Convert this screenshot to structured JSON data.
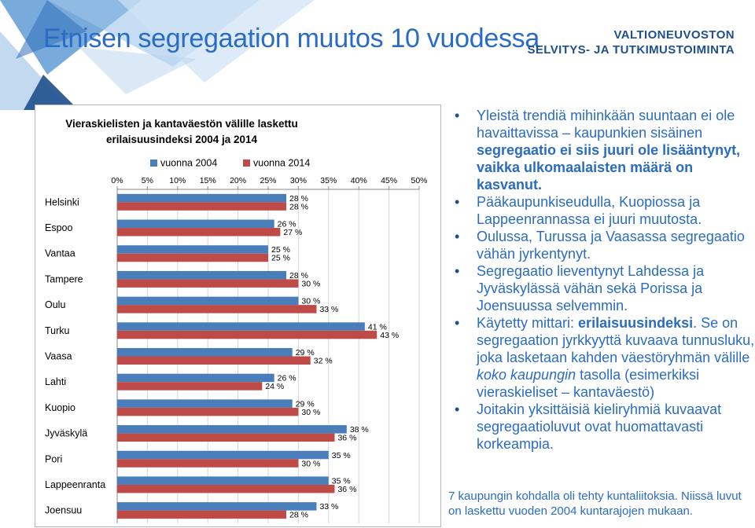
{
  "header": {
    "title": "Etnisen segregaation muutos 10 vuodessa",
    "org_line1": "VALTIONEUVOSTON",
    "org_line2": "SELVITYS- JA TUTKIMUSTOIMINTA"
  },
  "chart_data": {
    "type": "bar",
    "orientation": "horizontal",
    "title_line1": "Vieraskielisten ja kantaväestön välille laskettu",
    "title_line2": "erilaisuusindeksi 2004 ja 2014",
    "categories": [
      "Helsinki",
      "Espoo",
      "Vantaa",
      "Tampere",
      "Oulu",
      "Turku",
      "Vaasa",
      "Lahti",
      "Kuopio",
      "Jyväskylä",
      "Pori",
      "Lappeenranta",
      "Joensuu"
    ],
    "series": [
      {
        "name": "vuonna 2004",
        "color": "#4a7ebb",
        "values": [
          28,
          26,
          25,
          28,
          30,
          41,
          29,
          26,
          29,
          38,
          35,
          35,
          33
        ]
      },
      {
        "name": "vuonna 2014",
        "color": "#be4b48",
        "values": [
          28,
          27,
          25,
          30,
          33,
          43,
          32,
          24,
          30,
          36,
          30,
          36,
          28
        ]
      }
    ],
    "xlim": [
      0,
      50
    ],
    "ticks": [
      "0%",
      "5%",
      "10%",
      "15%",
      "20%",
      "25%",
      "30%",
      "35%",
      "40%",
      "45%",
      "50%"
    ],
    "tick_values": [
      0,
      5,
      10,
      15,
      20,
      25,
      30,
      35,
      40,
      45,
      50
    ],
    "value_suffix": " %",
    "legend_position": "top",
    "axis_position": "top",
    "grid": true
  },
  "bullets": [
    {
      "parts": [
        {
          "text": "Yleistä trendiä mihinkään suuntaan ei ole havaittavissa – kaupunkien sisäinen ",
          "style": "normal"
        },
        {
          "text": "segregaatio ei siis juuri ole lisääntynyt, vaikka ulkomaalaisten määrä on kasvanut.",
          "style": "bold"
        }
      ]
    },
    {
      "parts": [
        {
          "text": "Pääkaupunkiseudulla, Kuopiossa ja Lappeenrannassa ei juuri muutosta.",
          "style": "normal"
        }
      ]
    },
    {
      "parts": [
        {
          "text": "Oulussa, Turussa ja Vaasassa segregaatio vähän jyrkentynyt.",
          "style": "normal"
        }
      ]
    },
    {
      "parts": [
        {
          "text": "Segregaatio lieventynyt Lahdessa ja Jyväskylässä vähän sekä Porissa ja Joensuussa selvemmin.",
          "style": "normal"
        }
      ]
    },
    {
      "parts": [
        {
          "text": "Käytetty mittari: ",
          "style": "normal"
        },
        {
          "text": "erilaisuusindeksi",
          "style": "bold"
        },
        {
          "text": ". Se on segregaation jyrkkyyttä kuvaava tunnusluku, joka lasketaan kahden väestöryhmän välille ",
          "style": "normal"
        },
        {
          "text": "koko kaupungin",
          "style": "italic"
        },
        {
          "text": " tasolla (esimerkiksi vieraskieliset – kantaväestö)",
          "style": "normal"
        }
      ]
    },
    {
      "parts": [
        {
          "text": "Joitakin yksittäisiä kieliryhmiä kuvaavat segregaatioluvut ovat huomattavasti korkeampia.",
          "style": "normal"
        }
      ]
    }
  ],
  "footnote": "7 kaupungin kohdalla oli tehty kuntaliitoksia. Niissä luvut on laskettu vuoden 2004 kuntarajojen mukaan."
}
